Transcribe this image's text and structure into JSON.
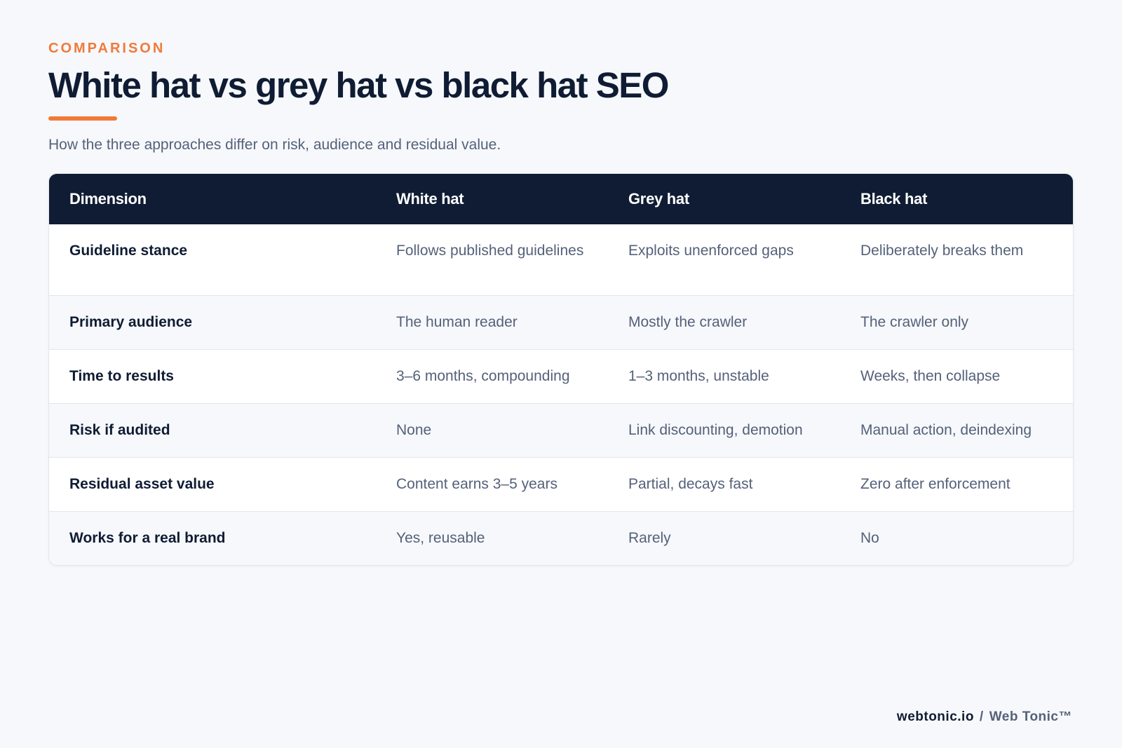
{
  "header": {
    "eyebrow": "COMPARISON",
    "title": "White hat vs grey hat vs black hat SEO",
    "subtitle": "How the three approaches differ on risk, audience and residual value."
  },
  "table": {
    "columns": [
      "Dimension",
      "White hat",
      "Grey hat",
      "Black hat"
    ],
    "rows": [
      [
        "Guideline stance",
        "Follows published guidelines",
        "Exploits unenforced gaps",
        "Deliberately breaks them"
      ],
      [
        "Primary audience",
        "The human reader",
        "Mostly the crawler",
        "The crawler only"
      ],
      [
        "Time to results",
        "3–6 months, compounding",
        "1–3 months, unstable",
        "Weeks, then collapse"
      ],
      [
        "Risk if audited",
        "None",
        "Link discounting, demotion",
        "Manual action, deindexing"
      ],
      [
        "Residual asset value",
        "Content earns 3–5 years",
        "Partial, decays fast",
        "Zero after enforcement"
      ],
      [
        "Works for a real brand",
        "Yes, reusable",
        "Rarely",
        "No"
      ]
    ]
  },
  "footer": {
    "site": "webtonic.io",
    "separator": "/",
    "brand": "Web Tonic™"
  },
  "colors": {
    "accent": "#f07a3a",
    "navy": "#0f1c33",
    "muted_text": "#55617a",
    "background": "#f6f8fb"
  }
}
